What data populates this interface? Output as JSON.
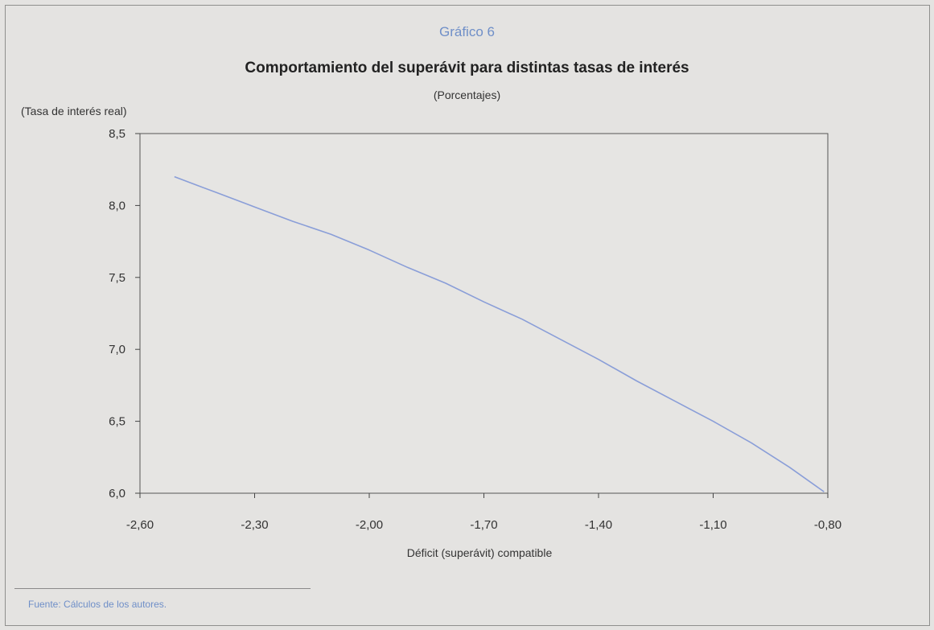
{
  "chart_data": {
    "type": "line",
    "chart_number": "Gráfico 6",
    "title": "Comportamiento del superávit para distintas tasas de interés",
    "subtitle": "(Porcentajes)",
    "xlabel": "Déficit (superávit) compatible",
    "ylabel": "(Tasa de interés real)",
    "xlim": [
      -2.6,
      -0.8
    ],
    "ylim": [
      6.0,
      8.5
    ],
    "x_ticks": [
      "-2,60",
      "-2,30",
      "-2,00",
      "-1,70",
      "-1,40",
      "-1,10",
      "-0,80"
    ],
    "y_ticks": [
      "8,5",
      "8,0",
      "7,5",
      "7,0",
      "6,5",
      "6,0"
    ],
    "grid": false,
    "series": [
      {
        "color": "#8a9ed8",
        "points": [
          [
            -2.51,
            8.2
          ],
          [
            -2.45,
            8.14
          ],
          [
            -2.4,
            8.09
          ],
          [
            -2.3,
            7.99
          ],
          [
            -2.2,
            7.89
          ],
          [
            -2.1,
            7.8
          ],
          [
            -2.0,
            7.69
          ],
          [
            -1.9,
            7.57
          ],
          [
            -1.8,
            7.46
          ],
          [
            -1.7,
            7.33
          ],
          [
            -1.6,
            7.21
          ],
          [
            -1.5,
            7.07
          ],
          [
            -1.4,
            6.93
          ],
          [
            -1.3,
            6.78
          ],
          [
            -1.2,
            6.64
          ],
          [
            -1.1,
            6.5
          ],
          [
            -1.0,
            6.35
          ],
          [
            -0.9,
            6.18
          ],
          [
            -0.81,
            6.01
          ]
        ]
      }
    ]
  },
  "source": "Fuente: Cálculos de los autores."
}
